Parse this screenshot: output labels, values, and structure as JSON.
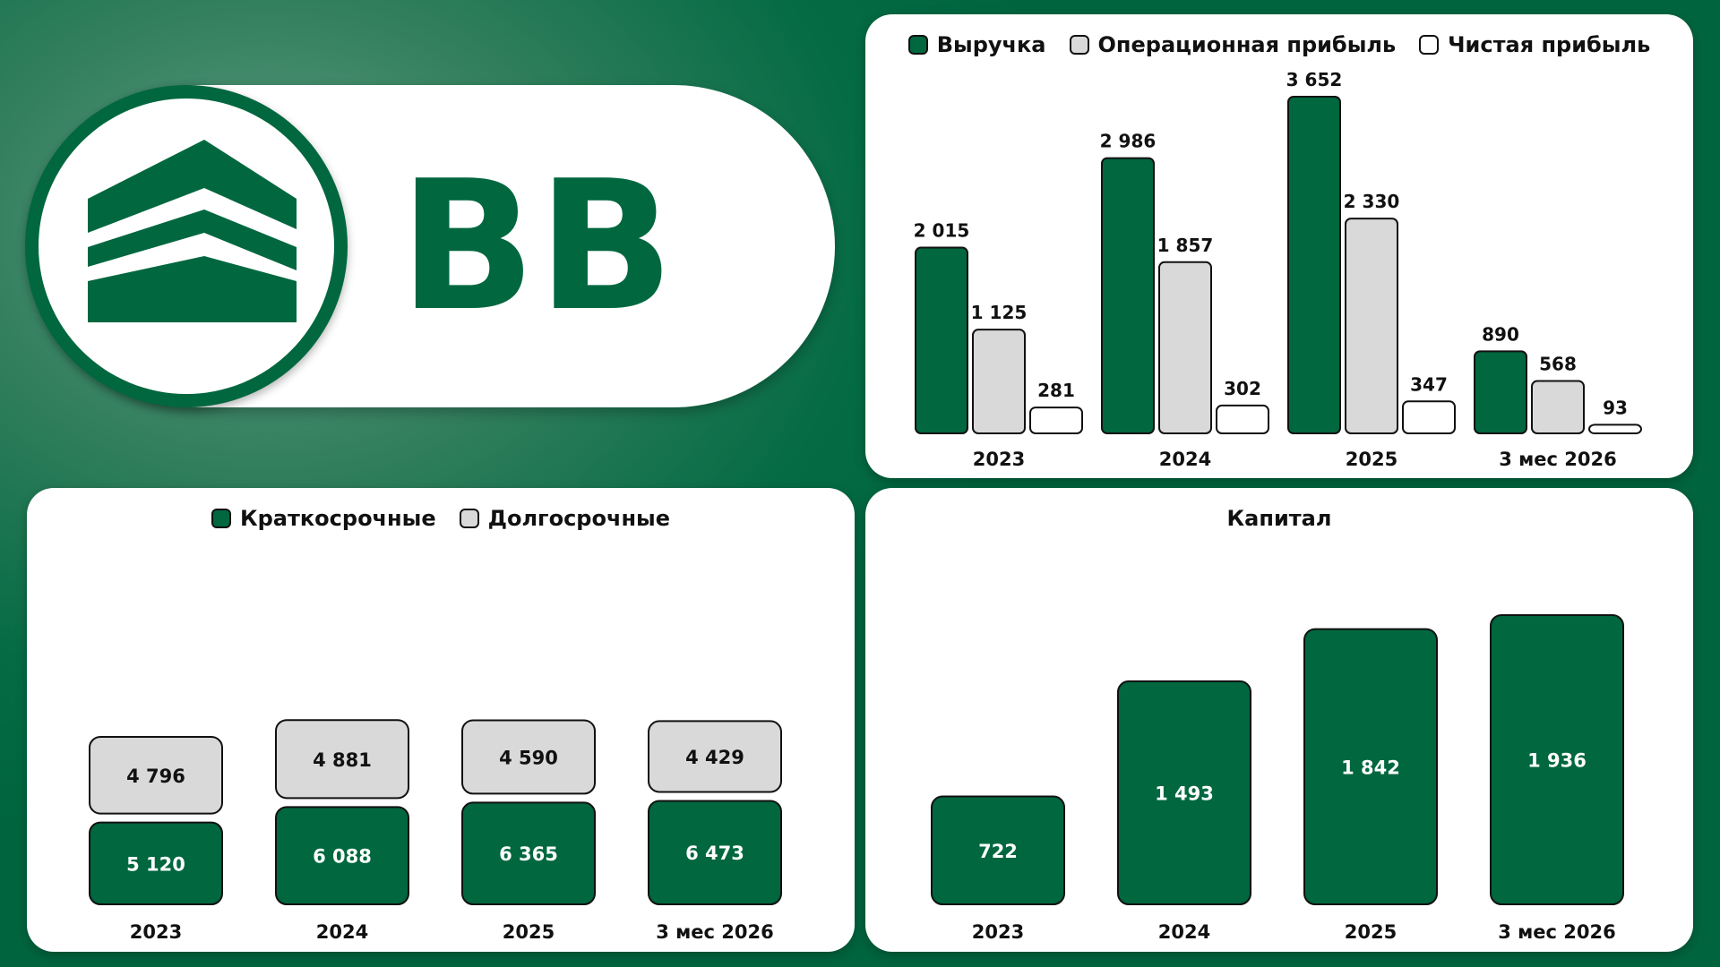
{
  "brand": {
    "ticker": "BB",
    "logo_icon": "stacked-chevron-roof-icon",
    "color_primary": "#00673f",
    "color_secondary": "#d9d9d9",
    "color_white": "#ffffff"
  },
  "chart_data": [
    {
      "id": "financials",
      "type": "bar",
      "title": "",
      "categories": [
        "2023",
        "2024",
        "2025",
        "3 мес 2026"
      ],
      "series": [
        {
          "name": "Выручка",
          "color": "#00673f",
          "values": [
            2015,
            2986,
            3652,
            890
          ],
          "labels": [
            "2 015",
            "2 986",
            "3 652",
            "890"
          ]
        },
        {
          "name": "Операционная прибыль",
          "color": "#d9d9d9",
          "values": [
            1125,
            1857,
            2330,
            568
          ],
          "labels": [
            "1 125",
            "1 857",
            "2 330",
            "568"
          ]
        },
        {
          "name": "Чистая прибыль",
          "color": "#ffffff",
          "values": [
            281,
            302,
            347,
            93
          ],
          "labels": [
            "281",
            "302",
            "347",
            "93"
          ]
        }
      ],
      "ylim": [
        0,
        3652
      ],
      "grid": false,
      "legend": "top"
    },
    {
      "id": "debt",
      "type": "bar",
      "stacked": true,
      "title": "",
      "categories": [
        "2023",
        "2024",
        "2025",
        "3 мес 2026"
      ],
      "series": [
        {
          "name": "Краткосрочные",
          "color": "#00673f",
          "values": [
            5120,
            6088,
            6365,
            6473
          ],
          "labels": [
            "5 120",
            "6 088",
            "6 365",
            "6 473"
          ]
        },
        {
          "name": "Долгосрочные",
          "color": "#d9d9d9",
          "values": [
            4796,
            4881,
            4590,
            4429
          ],
          "labels": [
            "4 796",
            "4 881",
            "4 590",
            "4 429"
          ]
        }
      ],
      "grid": false,
      "legend": "top"
    },
    {
      "id": "capital",
      "type": "bar",
      "title": "Капитал",
      "categories": [
        "2023",
        "2024",
        "2025",
        "3 мес 2026"
      ],
      "series": [
        {
          "name": "",
          "color": "#00673f",
          "values": [
            722,
            1493,
            1842,
            1936
          ],
          "labels": [
            "722",
            "1 493",
            "1 842",
            "1 936"
          ]
        }
      ],
      "ylim": [
        0,
        1936
      ],
      "grid": false,
      "legend": "none"
    }
  ]
}
